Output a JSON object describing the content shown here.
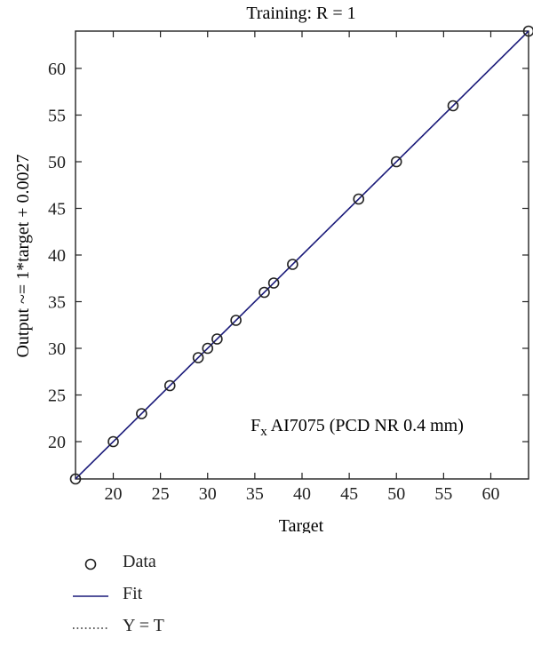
{
  "chart_data": {
    "type": "scatter",
    "title": "Training: R = 1",
    "xlabel": "Target",
    "ylabel": "Output ~= 1*target + 0.0027",
    "xlim": [
      16,
      64
    ],
    "ylim": [
      16,
      64
    ],
    "xticks": [
      20,
      25,
      30,
      35,
      40,
      45,
      50,
      55,
      60
    ],
    "yticks": [
      20,
      25,
      30,
      35,
      40,
      45,
      50,
      55,
      60
    ],
    "grid": false,
    "annotation": {
      "main": "F",
      "sub": "x",
      "rest": " AI7075 (PCD NR 0.4 mm)"
    },
    "fit": {
      "slope": 1,
      "intercept": 0.0027,
      "color": "#1a1a7a"
    },
    "series": [
      {
        "name": "Data",
        "x": [
          16,
          20,
          23,
          26,
          29,
          30,
          31,
          33,
          36,
          37,
          39,
          46,
          50,
          56,
          64
        ],
        "y": [
          16,
          20,
          23,
          26,
          29,
          30,
          31,
          33,
          36,
          37,
          39,
          46,
          50,
          56,
          64
        ]
      }
    ]
  },
  "legend": {
    "items": [
      {
        "label": "Data",
        "symbol": "circle"
      },
      {
        "label": "Fit",
        "symbol": "solid-line",
        "color": "#1a1a7a"
      },
      {
        "label": "Y = T",
        "symbol": "dotted-line"
      }
    ]
  }
}
